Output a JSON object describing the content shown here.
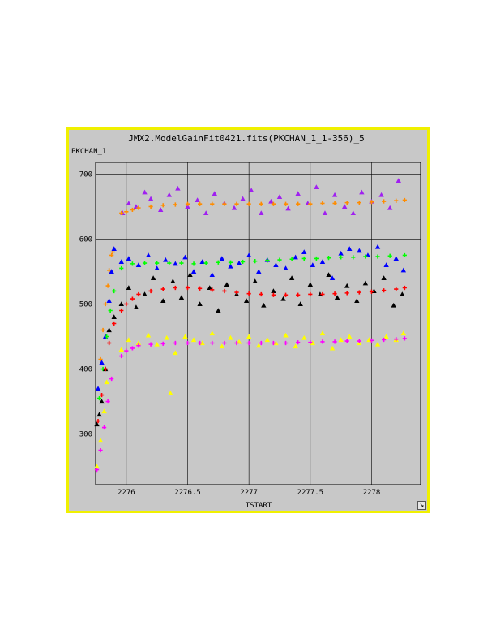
{
  "chart_data": {
    "type": "scatter",
    "title": "JMX2.ModelGainFit0421.fits(PKCHAN_1_1-356)_5",
    "ylabel": "PKCHAN_1",
    "xlabel": "TSTART",
    "xlim": [
      2275.75,
      2278.4
    ],
    "ylim": [
      222,
      718
    ],
    "xticks": [
      2276,
      2276.5,
      2277,
      2277.5,
      2278
    ],
    "xtick_labels": [
      "2276",
      "2276.5",
      "2277",
      "2277.5",
      "2278"
    ],
    "yticks": [
      300,
      400,
      500,
      600,
      700
    ],
    "ytick_labels": [
      "300",
      "400",
      "500",
      "600",
      "700"
    ],
    "grid": true,
    "series": [
      {
        "marker": "triangle",
        "color": "#a020f0",
        "x": [
          2275.97,
          2276.02,
          2276.08,
          2276.15,
          2276.2,
          2276.28,
          2276.35,
          2276.42,
          2276.5,
          2276.58,
          2276.65,
          2276.72,
          2276.8,
          2276.88,
          2276.95,
          2277.02,
          2277.1,
          2277.18,
          2277.25,
          2277.32,
          2277.4,
          2277.48,
          2277.55,
          2277.62,
          2277.7,
          2277.78,
          2277.85,
          2277.92,
          2278.0,
          2278.08,
          2278.15,
          2278.22
        ],
        "y": [
          640,
          655,
          650,
          672,
          662,
          645,
          668,
          678,
          650,
          660,
          640,
          670,
          655,
          648,
          662,
          675,
          640,
          658,
          665,
          647,
          670,
          655,
          680,
          640,
          668,
          650,
          640,
          672,
          658,
          668,
          648,
          690
        ]
      },
      {
        "marker": "cross",
        "color": "#ff8c00",
        "x": [
          2275.79,
          2275.81,
          2275.83,
          2275.85,
          2275.86,
          2275.88,
          2275.89,
          2275.96,
          2276.0,
          2276.05,
          2276.1,
          2276.2,
          2276.3,
          2276.4,
          2276.5,
          2276.6,
          2276.7,
          2276.8,
          2276.9,
          2277.0,
          2277.1,
          2277.2,
          2277.3,
          2277.4,
          2277.5,
          2277.6,
          2277.7,
          2277.8,
          2277.9,
          2278.0,
          2278.1,
          2278.2,
          2278.27
        ],
        "y": [
          415,
          460,
          500,
          528,
          552,
          575,
          580,
          640,
          642,
          645,
          648,
          650,
          652,
          653,
          654,
          654,
          654,
          654,
          654,
          654,
          654,
          654,
          654,
          654,
          654,
          655,
          655,
          656,
          656,
          657,
          658,
          659,
          660
        ]
      },
      {
        "marker": "triangle",
        "color": "#0000ff",
        "x": [
          2275.77,
          2275.8,
          2275.83,
          2275.86,
          2275.88,
          2275.9,
          2275.96,
          2276.02,
          2276.1,
          2276.18,
          2276.25,
          2276.32,
          2276.4,
          2276.48,
          2276.55,
          2276.62,
          2276.7,
          2276.78,
          2276.85,
          2276.92,
          2277.0,
          2277.08,
          2277.15,
          2277.22,
          2277.3,
          2277.38,
          2277.45,
          2277.52,
          2277.6,
          2277.68,
          2277.75,
          2277.82,
          2277.9,
          2277.97,
          2278.05,
          2278.12,
          2278.2,
          2278.26
        ],
        "y": [
          370,
          410,
          450,
          505,
          550,
          585,
          565,
          570,
          560,
          575,
          555,
          568,
          562,
          572,
          550,
          565,
          545,
          570,
          558,
          563,
          575,
          550,
          568,
          560,
          555,
          572,
          580,
          560,
          565,
          540,
          578,
          585,
          582,
          575,
          588,
          560,
          570,
          552
        ]
      },
      {
        "marker": "cross",
        "color": "#00ff00",
        "x": [
          2275.78,
          2275.81,
          2275.84,
          2275.87,
          2275.9,
          2275.96,
          2276.05,
          2276.15,
          2276.25,
          2276.35,
          2276.45,
          2276.55,
          2276.65,
          2276.75,
          2276.85,
          2276.95,
          2277.05,
          2277.15,
          2277.25,
          2277.35,
          2277.45,
          2277.55,
          2277.65,
          2277.75,
          2277.85,
          2277.95,
          2278.05,
          2278.15,
          2278.27
        ],
        "y": [
          355,
          400,
          450,
          490,
          520,
          555,
          562,
          563,
          563,
          563,
          563,
          562,
          563,
          564,
          564,
          565,
          566,
          567,
          568,
          569,
          570,
          570,
          571,
          572,
          572,
          573,
          573,
          574,
          575
        ]
      },
      {
        "marker": "triangle",
        "color": "#000000",
        "x": [
          2275.76,
          2275.78,
          2275.8,
          2275.83,
          2275.86,
          2275.9,
          2275.96,
          2276.02,
          2276.08,
          2276.15,
          2276.22,
          2276.3,
          2276.38,
          2276.45,
          2276.52,
          2276.6,
          2276.68,
          2276.75,
          2276.82,
          2276.9,
          2276.98,
          2277.05,
          2277.12,
          2277.2,
          2277.28,
          2277.35,
          2277.42,
          2277.5,
          2277.58,
          2277.65,
          2277.72,
          2277.8,
          2277.88,
          2277.95,
          2278.02,
          2278.1,
          2278.18,
          2278.25
        ],
        "y": [
          315,
          330,
          350,
          400,
          460,
          480,
          500,
          525,
          495,
          515,
          540,
          505,
          535,
          510,
          545,
          500,
          525,
          490,
          530,
          515,
          505,
          535,
          498,
          520,
          508,
          540,
          500,
          530,
          515,
          545,
          510,
          528,
          505,
          532,
          520,
          540,
          498,
          515
        ]
      },
      {
        "marker": "cross",
        "color": "#ff0000",
        "x": [
          2275.77,
          2275.8,
          2275.83,
          2275.86,
          2275.9,
          2275.96,
          2276.0,
          2276.05,
          2276.1,
          2276.2,
          2276.3,
          2276.4,
          2276.5,
          2276.6,
          2276.7,
          2276.8,
          2276.9,
          2277.0,
          2277.1,
          2277.2,
          2277.3,
          2277.4,
          2277.5,
          2277.6,
          2277.7,
          2277.8,
          2277.9,
          2278.0,
          2278.1,
          2278.2,
          2278.27
        ],
        "y": [
          320,
          360,
          400,
          440,
          470,
          490,
          500,
          508,
          515,
          520,
          523,
          525,
          525,
          524,
          522,
          520,
          518,
          516,
          515,
          514,
          514,
          514,
          515,
          515,
          516,
          517,
          518,
          519,
          521,
          523,
          525
        ]
      },
      {
        "marker": "triangle",
        "color": "#ffff00",
        "x": [
          2275.76,
          2275.79,
          2275.82,
          2275.84,
          2275.96,
          2276.02,
          2276.1,
          2276.18,
          2276.25,
          2276.33,
          2276.36,
          2276.4,
          2276.48,
          2276.55,
          2276.62,
          2276.7,
          2276.78,
          2276.85,
          2276.92,
          2277.0,
          2277.08,
          2277.15,
          2277.22,
          2277.3,
          2277.38,
          2277.45,
          2277.52,
          2277.6,
          2277.68,
          2277.75,
          2277.82,
          2277.9,
          2277.98,
          2278.05,
          2278.12,
          2278.2,
          2278.26
        ],
        "y": [
          250,
          290,
          335,
          380,
          430,
          445,
          440,
          452,
          438,
          448,
          363,
          425,
          450,
          445,
          440,
          455,
          435,
          448,
          442,
          450,
          436,
          445,
          440,
          452,
          435,
          448,
          440,
          455,
          432,
          445,
          450,
          440,
          445,
          438,
          450,
          445,
          455
        ]
      },
      {
        "marker": "cross",
        "color": "#ff00ff",
        "x": [
          2275.76,
          2275.79,
          2275.82,
          2275.85,
          2275.88,
          2275.96,
          2276.0,
          2276.05,
          2276.1,
          2276.2,
          2276.3,
          2276.4,
          2276.5,
          2276.6,
          2276.7,
          2276.8,
          2276.9,
          2277.0,
          2277.1,
          2277.2,
          2277.3,
          2277.4,
          2277.5,
          2277.6,
          2277.7,
          2277.8,
          2277.9,
          2278.0,
          2278.1,
          2278.2,
          2278.27
        ],
        "y": [
          245,
          275,
          310,
          350,
          385,
          420,
          428,
          432,
          436,
          438,
          439,
          440,
          440,
          440,
          440,
          440,
          440,
          440,
          440,
          440,
          440,
          441,
          441,
          442,
          442,
          443,
          443,
          444,
          445,
          446,
          447
        ]
      }
    ]
  }
}
